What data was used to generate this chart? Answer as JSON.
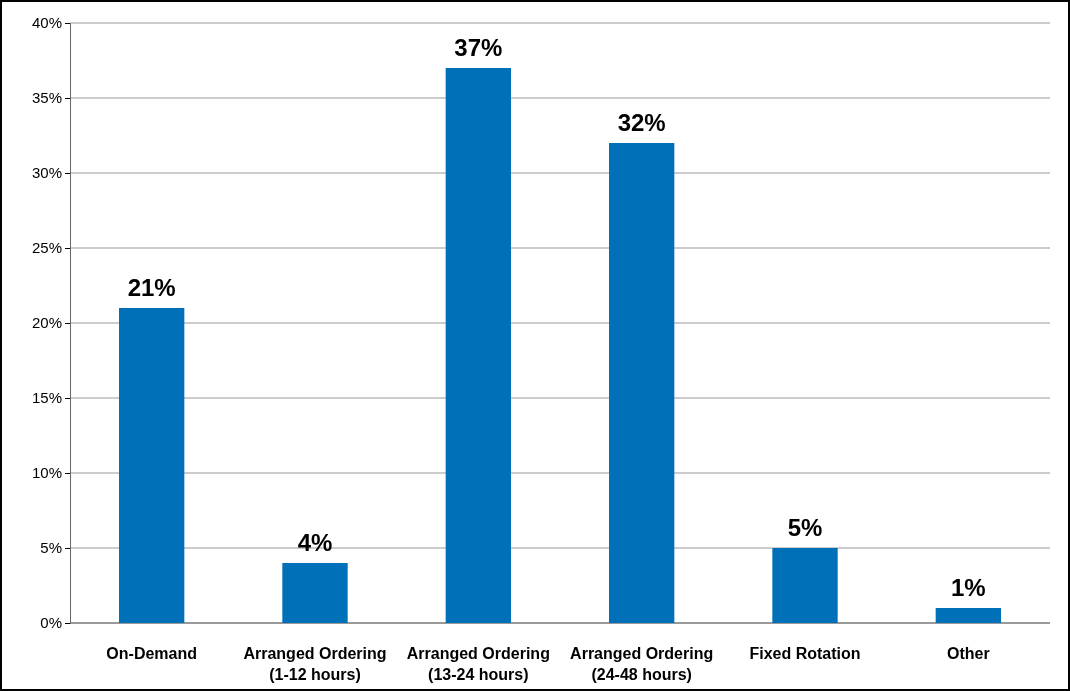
{
  "chart_data": {
    "type": "bar",
    "categories": [
      "On-Demand",
      "Arranged Ordering\n(1-12 hours)",
      "Arranged Ordering\n(13-24 hours)",
      "Arranged Ordering\n(24-48 hours)",
      "Fixed Rotation",
      "Other"
    ],
    "values": [
      21,
      4,
      37,
      32,
      5,
      1
    ],
    "value_labels": [
      "21%",
      "4%",
      "37%",
      "32%",
      "5%",
      "1%"
    ],
    "color": "#0070b8",
    "ylim": [
      0,
      40
    ],
    "yticks": [
      {
        "value": 0,
        "label": "0%"
      },
      {
        "value": 5,
        "label": "5%"
      },
      {
        "value": 10,
        "label": "10%"
      },
      {
        "value": 15,
        "label": "15%"
      },
      {
        "value": 20,
        "label": "20%"
      },
      {
        "value": 25,
        "label": "25%"
      },
      {
        "value": 30,
        "label": "30%"
      },
      {
        "value": 35,
        "label": "35%"
      },
      {
        "value": 40,
        "label": "40%"
      }
    ],
    "grid": "y"
  }
}
